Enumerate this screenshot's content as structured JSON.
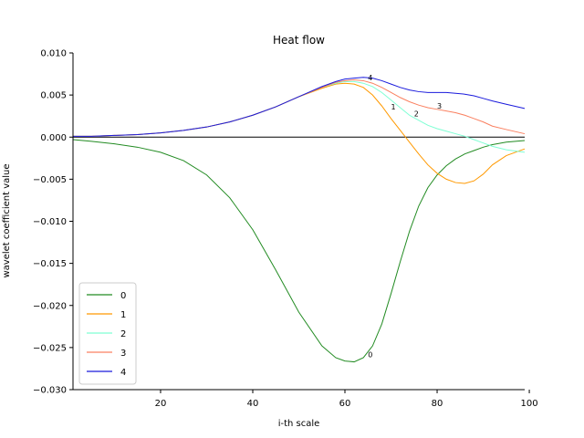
{
  "chart_data": {
    "type": "line",
    "title": "Heat flow",
    "xlabel": "i-th scale",
    "ylabel": "wavelet coefficient value",
    "xlim": [
      1,
      99
    ],
    "ylim": [
      -0.03,
      0.01
    ],
    "xticks": [
      20,
      40,
      60,
      80,
      100
    ],
    "yticks": [
      0.01,
      0.005,
      0.0,
      -0.005,
      -0.01,
      -0.015,
      -0.02,
      -0.025,
      -0.03
    ],
    "ytick_labels": [
      "0.010",
      "0.005",
      "0.000",
      "−0.005",
      "−0.010",
      "−0.015",
      "−0.020",
      "−0.025",
      "−0.030"
    ],
    "grid": false,
    "legend_position": "lower-left",
    "zero_line": true,
    "series": [
      {
        "name": "0",
        "color": "#228B22",
        "x": [
          1,
          5,
          10,
          15,
          20,
          25,
          30,
          35,
          40,
          45,
          50,
          55,
          58,
          60,
          62,
          64,
          66,
          68,
          70,
          72,
          74,
          76,
          78,
          80,
          82,
          84,
          86,
          88,
          90,
          92,
          95,
          99
        ],
        "y": [
          -0.0003,
          -0.0005,
          -0.0008,
          -0.0012,
          -0.0018,
          -0.0028,
          -0.0045,
          -0.0072,
          -0.011,
          -0.0158,
          -0.0208,
          -0.0248,
          -0.0262,
          -0.0266,
          -0.0267,
          -0.0262,
          -0.0248,
          -0.0222,
          -0.0186,
          -0.0148,
          -0.0112,
          -0.0082,
          -0.006,
          -0.0045,
          -0.0034,
          -0.0026,
          -0.002,
          -0.0016,
          -0.0012,
          -0.0009,
          -0.0006,
          -0.0004
        ]
      },
      {
        "name": "1",
        "color": "#FF9900",
        "x": [
          1,
          5,
          10,
          15,
          20,
          25,
          30,
          35,
          40,
          45,
          50,
          55,
          58,
          60,
          62,
          64,
          66,
          68,
          70,
          72,
          74,
          76,
          78,
          80,
          82,
          84,
          86,
          88,
          90,
          92,
          95,
          99
        ],
        "y": [
          0.0001,
          0.0001,
          0.0002,
          0.0003,
          0.0005,
          0.0008,
          0.0012,
          0.0018,
          0.0026,
          0.0036,
          0.0048,
          0.0058,
          0.0063,
          0.0064,
          0.0063,
          0.0059,
          0.005,
          0.0037,
          0.0022,
          0.0008,
          -0.0006,
          -0.002,
          -0.0033,
          -0.0043,
          -0.005,
          -0.0054,
          -0.0055,
          -0.0052,
          -0.0044,
          -0.0033,
          -0.0022,
          -0.0014
        ]
      },
      {
        "name": "2",
        "color": "#7FFFD4",
        "x": [
          1,
          5,
          10,
          15,
          20,
          25,
          30,
          35,
          40,
          45,
          50,
          55,
          58,
          60,
          62,
          64,
          66,
          68,
          70,
          72,
          74,
          76,
          78,
          80,
          82,
          84,
          86,
          88,
          90,
          92,
          95,
          99
        ],
        "y": [
          0.0001,
          0.0001,
          0.0002,
          0.0003,
          0.0005,
          0.0008,
          0.0012,
          0.0018,
          0.0026,
          0.0036,
          0.0048,
          0.0059,
          0.0064,
          0.0066,
          0.0066,
          0.0064,
          0.006,
          0.0053,
          0.0044,
          0.0035,
          0.0026,
          0.002,
          0.0014,
          0.001,
          0.0007,
          0.0004,
          0.0001,
          -0.0003,
          -0.0007,
          -0.0011,
          -0.0015,
          -0.0018
        ]
      },
      {
        "name": "3",
        "color": "#FA8060",
        "x": [
          1,
          5,
          10,
          15,
          20,
          25,
          30,
          35,
          40,
          45,
          50,
          55,
          58,
          60,
          62,
          64,
          66,
          68,
          70,
          72,
          74,
          76,
          78,
          80,
          82,
          84,
          86,
          88,
          90,
          92,
          95,
          99
        ],
        "y": [
          0.0001,
          0.0001,
          0.0002,
          0.0003,
          0.0005,
          0.0008,
          0.0012,
          0.0018,
          0.0026,
          0.0036,
          0.0048,
          0.0059,
          0.0065,
          0.0067,
          0.0068,
          0.0067,
          0.0064,
          0.0059,
          0.0053,
          0.0047,
          0.0042,
          0.0038,
          0.0035,
          0.0033,
          0.0031,
          0.0029,
          0.0026,
          0.0022,
          0.0018,
          0.0013,
          0.0009,
          0.0004
        ]
      },
      {
        "name": "4",
        "color": "#1A1ADC",
        "x": [
          1,
          5,
          10,
          15,
          20,
          25,
          30,
          35,
          40,
          45,
          50,
          55,
          58,
          60,
          62,
          64,
          66,
          68,
          70,
          72,
          74,
          76,
          78,
          80,
          82,
          84,
          86,
          88,
          90,
          92,
          95,
          99
        ],
        "y": [
          0.0001,
          0.0001,
          0.0002,
          0.0003,
          0.0005,
          0.0008,
          0.0012,
          0.0018,
          0.0026,
          0.0036,
          0.0048,
          0.006,
          0.0066,
          0.0069,
          0.007,
          0.0071,
          0.007,
          0.0067,
          0.0063,
          0.0059,
          0.0056,
          0.0054,
          0.0053,
          0.0053,
          0.0053,
          0.0052,
          0.0051,
          0.0049,
          0.0046,
          0.0043,
          0.0039,
          0.0034
        ]
      }
    ],
    "annotations": [
      {
        "text": "0",
        "x": 65,
        "y": -0.0258
      },
      {
        "text": "1",
        "x": 70,
        "y": 0.0036
      },
      {
        "text": "2",
        "x": 75,
        "y": 0.0028
      },
      {
        "text": "3",
        "x": 80,
        "y": 0.0037
      },
      {
        "text": "4",
        "x": 65,
        "y": 0.0071
      }
    ]
  }
}
